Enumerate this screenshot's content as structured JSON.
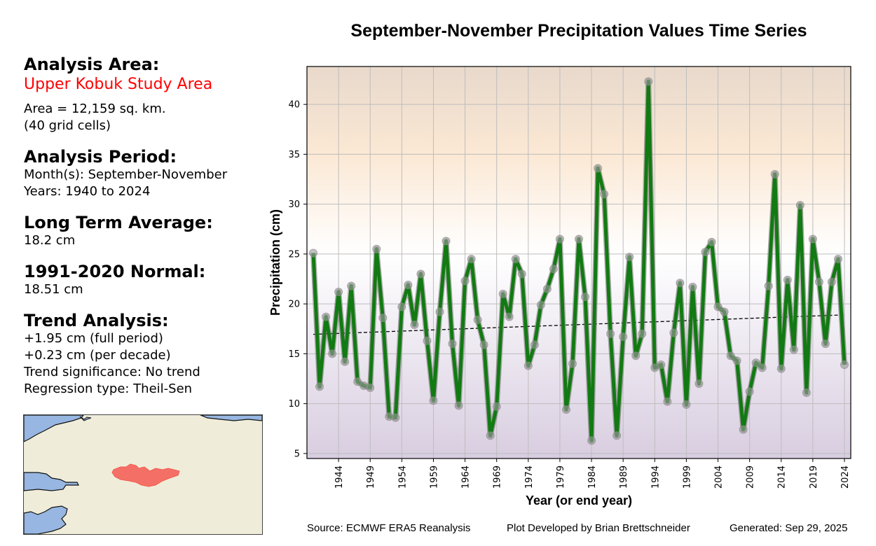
{
  "side_panel": {
    "area_heading": "Analysis Area:",
    "area_name": "Upper Kobuk Study Area",
    "area_size": "Area = 12,159 sq. km.",
    "grid_cells": "(40 grid cells)",
    "period_heading": "Analysis Period:",
    "months": "Month(s): September-November",
    "years": "Years: 1940 to 2024",
    "lta_heading": "Long Term Average:",
    "lta_value": "18.2 cm",
    "normal_heading": "1991-2020 Normal:",
    "normal_value": "18.51 cm",
    "trend_heading": "Trend Analysis:",
    "trend_full": "+1.95 cm (full period)",
    "trend_decade": "+0.23 cm (per decade)",
    "trend_significance": "Trend significance: No trend",
    "regression_type": "Regression type: Theil-Sen"
  },
  "colors": {
    "line": "#127a12",
    "marker": "#9a9a9a",
    "area_name": "#ff0000",
    "study_area_fill": "#f47066",
    "water": "#97b6e1",
    "land": "#efedda",
    "bg_top": "#e8d9cc",
    "bg_mid": "#ffffff",
    "bg_bottom": "#d8cde0"
  },
  "footer": {
    "source": "Source: ECMWF ERA5 Reanalysis",
    "developer": "Plot Developed by Brian Brettschneider",
    "generated": "Generated: Sep 29, 2025"
  },
  "chart_data": {
    "type": "line",
    "title": "September-November Precipitation Values Time Series",
    "xlabel": "Year (or end year)",
    "ylabel": "Precipitation (cm)",
    "xlim": [
      1939,
      2025
    ],
    "ylim": [
      4.5,
      43.8
    ],
    "grid": true,
    "x_ticks": [
      1944,
      1949,
      1954,
      1959,
      1964,
      1969,
      1974,
      1979,
      1984,
      1989,
      1994,
      1999,
      2004,
      2009,
      2014,
      2019,
      2024
    ],
    "y_ticks": [
      5,
      10,
      15,
      20,
      25,
      30,
      35,
      40
    ],
    "x": [
      1940,
      1941,
      1942,
      1943,
      1944,
      1945,
      1946,
      1947,
      1948,
      1949,
      1950,
      1951,
      1952,
      1953,
      1954,
      1955,
      1956,
      1957,
      1958,
      1959,
      1960,
      1961,
      1962,
      1963,
      1964,
      1965,
      1966,
      1967,
      1968,
      1969,
      1970,
      1971,
      1972,
      1973,
      1974,
      1975,
      1976,
      1977,
      1978,
      1979,
      1980,
      1981,
      1982,
      1983,
      1984,
      1985,
      1986,
      1987,
      1988,
      1989,
      1990,
      1991,
      1992,
      1993,
      1994,
      1995,
      1996,
      1997,
      1998,
      1999,
      2000,
      2001,
      2002,
      2003,
      2004,
      2005,
      2006,
      2007,
      2008,
      2009,
      2010,
      2011,
      2012,
      2013,
      2014,
      2015,
      2016,
      2017,
      2018,
      2019,
      2020,
      2021,
      2022,
      2023,
      2024
    ],
    "series": [
      {
        "name": "Precipitation",
        "values": [
          25.1,
          11.7,
          18.7,
          15.0,
          21.2,
          14.2,
          21.8,
          12.2,
          11.8,
          11.6,
          25.5,
          18.6,
          8.7,
          8.6,
          19.7,
          21.9,
          17.9,
          23.0,
          16.3,
          10.3,
          19.2,
          26.3,
          16.0,
          9.8,
          22.3,
          24.5,
          18.4,
          15.9,
          6.8,
          9.7,
          21.0,
          18.7,
          24.5,
          23.0,
          13.8,
          15.9,
          19.9,
          21.5,
          23.5,
          26.5,
          9.4,
          14.0,
          26.5,
          20.7,
          6.3,
          33.6,
          31.0,
          17.0,
          6.8,
          16.7,
          24.7,
          14.8,
          17.0,
          42.3,
          13.6,
          13.9,
          10.2,
          17.1,
          22.1,
          9.9,
          21.7,
          12.0,
          25.2,
          26.2,
          19.7,
          19.2,
          14.8,
          14.3,
          7.4,
          11.2,
          14.1,
          13.6,
          21.8,
          33.0,
          13.5,
          22.4,
          15.4,
          29.9,
          11.1,
          26.5,
          22.2,
          16.0,
          22.2,
          24.5,
          13.9
        ]
      },
      {
        "name": "Theil-Sen trend",
        "style": "dashed",
        "x": [
          1940,
          2024
        ],
        "values": [
          16.95,
          18.9
        ]
      }
    ]
  }
}
